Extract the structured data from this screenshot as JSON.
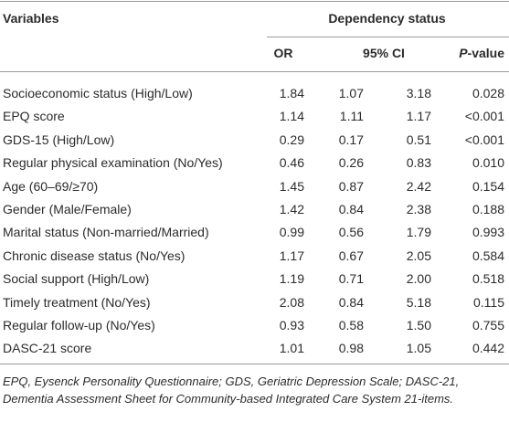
{
  "table": {
    "header": {
      "variables": "Variables",
      "group": "Dependency status"
    },
    "columns": {
      "or": "OR",
      "ci": "95% CI",
      "p_italic": "P",
      "p_rest": "-value"
    },
    "rows": [
      [
        "Socioeconomic status (High/Low)",
        "1.84",
        "1.07",
        "3.18",
        "0.028"
      ],
      [
        "EPQ score",
        "1.14",
        "1.11",
        "1.17",
        "<0.001"
      ],
      [
        "GDS-15 (High/Low)",
        "0.29",
        "0.17",
        "0.51",
        "<0.001"
      ],
      [
        "Regular physical examination (No/Yes)",
        "0.46",
        "0.26",
        "0.83",
        "0.010"
      ],
      [
        "Age (60–69/≥70)",
        "1.45",
        "0.87",
        "2.42",
        "0.154"
      ],
      [
        "Gender (Male/Female)",
        "1.42",
        "0.84",
        "2.38",
        "0.188"
      ],
      [
        "Marital status (Non-married/Married)",
        "0.99",
        "0.56",
        "1.79",
        "0.993"
      ],
      [
        "Chronic disease status (No/Yes)",
        "1.17",
        "0.67",
        "2.05",
        "0.584"
      ],
      [
        "Social support (High/Low)",
        "1.19",
        "0.71",
        "2.00",
        "0.518"
      ],
      [
        "Timely treatment (No/Yes)",
        "2.08",
        "0.84",
        "5.18",
        "0.115"
      ],
      [
        "Regular follow-up (No/Yes)",
        "0.93",
        "0.58",
        "1.50",
        "0.755"
      ],
      [
        "DASC-21 score",
        "1.01",
        "0.98",
        "1.05",
        "0.442"
      ]
    ],
    "footnote": "EPQ, Eysenck Personality Questionnaire; GDS, Geriatric Depression Scale; DASC-21, Dementia Assessment Sheet for Community-based Integrated Care System 21-items."
  }
}
